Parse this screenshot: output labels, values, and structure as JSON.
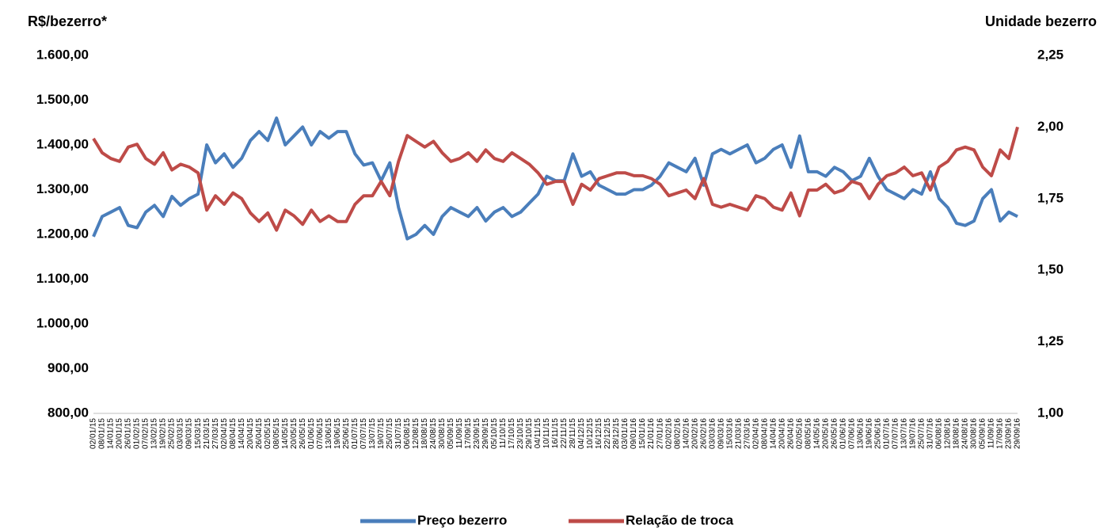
{
  "chart_data": {
    "type": "line",
    "y_label": "R$/bezerro*",
    "y2_label": "Unidade bezerro",
    "categories": [
      "02/01/15",
      "08/01/15",
      "14/01/15",
      "20/01/15",
      "26/01/15",
      "01/02/15",
      "07/02/15",
      "13/02/15",
      "19/02/15",
      "25/02/15",
      "03/03/15",
      "09/03/15",
      "15/03/15",
      "21/03/15",
      "27/03/15",
      "02/04/15",
      "08/04/15",
      "14/04/15",
      "20/04/15",
      "26/04/15",
      "02/05/15",
      "08/05/15",
      "14/05/15",
      "20/05/15",
      "26/05/15",
      "01/06/15",
      "07/06/15",
      "13/06/15",
      "19/06/15",
      "25/06/15",
      "01/07/15",
      "07/07/15",
      "13/07/15",
      "19/07/15",
      "25/07/15",
      "31/07/15",
      "06/08/15",
      "12/08/15",
      "18/08/15",
      "24/08/15",
      "30/08/15",
      "05/09/15",
      "11/09/15",
      "17/09/15",
      "23/09/15",
      "29/09/15",
      "05/10/15",
      "11/10/15",
      "17/10/15",
      "23/10/15",
      "29/10/15",
      "04/11/15",
      "10/11/15",
      "16/11/15",
      "22/11/15",
      "28/11/15",
      "04/12/15",
      "10/12/15",
      "16/12/15",
      "22/12/15",
      "28/12/15",
      "03/01/16",
      "09/01/16",
      "15/01/16",
      "21/01/16",
      "27/01/16",
      "02/02/16",
      "08/02/16",
      "14/02/16",
      "20/02/16",
      "26/02/16",
      "03/03/16",
      "09/03/16",
      "15/03/16",
      "21/03/16",
      "27/03/16",
      "02/04/16",
      "08/04/16",
      "14/04/16",
      "20/04/16",
      "26/04/16",
      "02/05/16",
      "08/05/16",
      "14/05/16",
      "20/05/16",
      "26/05/16",
      "01/06/16",
      "07/06/16",
      "13/06/16",
      "19/06/16",
      "25/06/16",
      "01/07/16",
      "07/07/16",
      "13/07/16",
      "19/07/16",
      "25/07/16",
      "31/07/16",
      "06/08/16",
      "12/08/16",
      "18/08/16",
      "24/08/16",
      "30/08/16",
      "05/09/16",
      "11/09/16",
      "17/09/16",
      "23/09/16",
      "29/09/16"
    ],
    "series": [
      {
        "name": "Preço bezerro",
        "color": "#4a7ebb",
        "values": [
          1195,
          1240,
          1250,
          1260,
          1220,
          1215,
          1250,
          1265,
          1240,
          1285,
          1265,
          1280,
          1290,
          1400,
          1360,
          1380,
          1350,
          1370,
          1410,
          1430,
          1410,
          1460,
          1400,
          1420,
          1440,
          1400,
          1430,
          1415,
          1430,
          1430,
          1380,
          1355,
          1360,
          1320,
          1360,
          1260,
          1190,
          1200,
          1220,
          1200,
          1240,
          1260,
          1250,
          1240,
          1260,
          1230,
          1250,
          1260,
          1240,
          1250,
          1270,
          1290,
          1330,
          1320,
          1320,
          1380,
          1330,
          1340,
          1310,
          1300,
          1290,
          1290,
          1300,
          1300,
          1310,
          1330,
          1360,
          1350,
          1340,
          1370,
          1310,
          1380,
          1390,
          1380,
          1390,
          1400,
          1360,
          1370,
          1390,
          1400,
          1350,
          1420,
          1340,
          1340,
          1330,
          1350,
          1340,
          1320,
          1330,
          1370,
          1330,
          1300,
          1290,
          1280,
          1300,
          1290,
          1340,
          1280,
          1260,
          1225,
          1220,
          1230,
          1280,
          1300,
          1230,
          1250,
          1240
        ]
      },
      {
        "name": "Relação de troca",
        "color": "#be4b48",
        "axis": "y2",
        "values": [
          1.96,
          1.91,
          1.89,
          1.88,
          1.93,
          1.94,
          1.89,
          1.87,
          1.91,
          1.85,
          1.87,
          1.86,
          1.84,
          1.71,
          1.76,
          1.73,
          1.77,
          1.75,
          1.7,
          1.67,
          1.7,
          1.64,
          1.71,
          1.69,
          1.66,
          1.71,
          1.67,
          1.69,
          1.67,
          1.67,
          1.73,
          1.76,
          1.76,
          1.81,
          1.76,
          1.88,
          1.97,
          1.95,
          1.93,
          1.95,
          1.91,
          1.88,
          1.89,
          1.91,
          1.88,
          1.92,
          1.89,
          1.88,
          1.91,
          1.89,
          1.87,
          1.84,
          1.8,
          1.81,
          1.81,
          1.73,
          1.8,
          1.78,
          1.82,
          1.83,
          1.84,
          1.84,
          1.83,
          1.83,
          1.82,
          1.8,
          1.76,
          1.77,
          1.78,
          1.75,
          1.82,
          1.73,
          1.72,
          1.73,
          1.72,
          1.71,
          1.76,
          1.75,
          1.72,
          1.71,
          1.77,
          1.69,
          1.78,
          1.78,
          1.8,
          1.77,
          1.78,
          1.81,
          1.8,
          1.75,
          1.8,
          1.83,
          1.84,
          1.86,
          1.83,
          1.84,
          1.78,
          1.86,
          1.88,
          1.92,
          1.93,
          1.92,
          1.86,
          1.83,
          1.92,
          1.89,
          2.0
        ]
      }
    ],
    "ylim": [
      800,
      1600
    ],
    "yticks": [
      {
        "value": 800,
        "label": "800,00"
      },
      {
        "value": 900,
        "label": "900,00"
      },
      {
        "value": 1000,
        "label": "1.000,00"
      },
      {
        "value": 1100,
        "label": "1.100,00"
      },
      {
        "value": 1200,
        "label": "1.200,00"
      },
      {
        "value": 1300,
        "label": "1.300,00"
      },
      {
        "value": 1400,
        "label": "1.400,00"
      },
      {
        "value": 1500,
        "label": "1.500,00"
      },
      {
        "value": 1600,
        "label": "1.600,00"
      }
    ],
    "y2lim": [
      1,
      2.25
    ],
    "y2ticks": [
      {
        "value": 1,
        "label": "1,00"
      },
      {
        "value": 1.25,
        "label": "1,25"
      },
      {
        "value": 1.5,
        "label": "1,50"
      },
      {
        "value": 1.75,
        "label": "1,75"
      },
      {
        "value": 2,
        "label": "2,00"
      },
      {
        "value": 2.25,
        "label": "2,25"
      }
    ],
    "legend": "bottom"
  }
}
